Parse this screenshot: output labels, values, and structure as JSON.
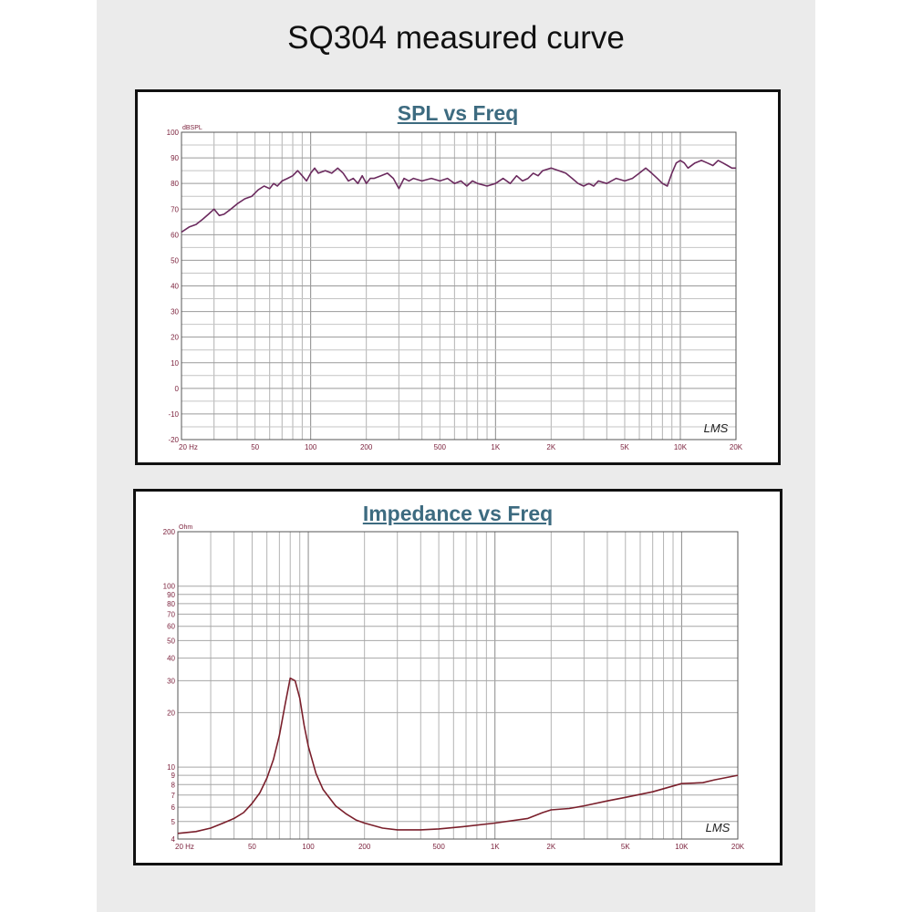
{
  "page_title": "SQ304 measured curve",
  "chart_data": [
    {
      "type": "line",
      "title": "SPL vs Freq",
      "ylabel": "dBSPL",
      "xlabel": "",
      "x_scale": "log",
      "xlim": [
        20,
        20000
      ],
      "ylim": [
        -20,
        100
      ],
      "grid": true,
      "x_tick_labels": [
        "20 Hz",
        "50",
        "100",
        "200",
        "500",
        "1K",
        "2K",
        "5K",
        "10K",
        "20K"
      ],
      "y_tick_labels": [
        "100",
        "90",
        "80",
        "70",
        "60",
        "50",
        "40",
        "30",
        "20",
        "10",
        "0",
        "-10",
        "-20"
      ],
      "watermark": "LMS",
      "series": [
        {
          "color": "#6b2a5e",
          "points": [
            [
              20,
              61
            ],
            [
              22,
              63
            ],
            [
              24,
              64
            ],
            [
              26,
              66
            ],
            [
              28,
              68
            ],
            [
              30,
              70
            ],
            [
              32,
              67.5
            ],
            [
              34,
              68
            ],
            [
              37,
              70
            ],
            [
              40,
              72
            ],
            [
              44,
              74
            ],
            [
              48,
              75
            ],
            [
              52,
              77.5
            ],
            [
              56,
              79
            ],
            [
              60,
              78
            ],
            [
              63,
              80
            ],
            [
              66,
              79
            ],
            [
              70,
              81
            ],
            [
              75,
              82
            ],
            [
              80,
              83
            ],
            [
              85,
              85
            ],
            [
              90,
              83
            ],
            [
              95,
              81
            ],
            [
              100,
              84
            ],
            [
              105,
              86
            ],
            [
              110,
              84
            ],
            [
              120,
              85
            ],
            [
              130,
              84
            ],
            [
              140,
              86
            ],
            [
              150,
              84
            ],
            [
              160,
              81
            ],
            [
              170,
              82
            ],
            [
              180,
              80
            ],
            [
              190,
              83
            ],
            [
              200,
              80
            ],
            [
              210,
              82
            ],
            [
              220,
              82
            ],
            [
              240,
              83
            ],
            [
              260,
              84
            ],
            [
              280,
              82
            ],
            [
              300,
              78
            ],
            [
              320,
              82
            ],
            [
              340,
              81
            ],
            [
              360,
              82
            ],
            [
              400,
              81
            ],
            [
              450,
              82
            ],
            [
              500,
              81
            ],
            [
              550,
              82
            ],
            [
              600,
              80
            ],
            [
              650,
              81
            ],
            [
              700,
              79
            ],
            [
              750,
              81
            ],
            [
              800,
              80
            ],
            [
              900,
              79
            ],
            [
              1000,
              80
            ],
            [
              1100,
              82
            ],
            [
              1200,
              80
            ],
            [
              1300,
              83
            ],
            [
              1400,
              81
            ],
            [
              1500,
              82
            ],
            [
              1600,
              84
            ],
            [
              1700,
              83
            ],
            [
              1800,
              85
            ],
            [
              2000,
              86
            ],
            [
              2200,
              85
            ],
            [
              2400,
              84
            ],
            [
              2600,
              82
            ],
            [
              2800,
              80
            ],
            [
              3000,
              79
            ],
            [
              3200,
              80
            ],
            [
              3400,
              79
            ],
            [
              3600,
              81
            ],
            [
              4000,
              80
            ],
            [
              4500,
              82
            ],
            [
              5000,
              81
            ],
            [
              5500,
              82
            ],
            [
              6000,
              84
            ],
            [
              6500,
              86
            ],
            [
              7000,
              84
            ],
            [
              7500,
              82
            ],
            [
              8000,
              80
            ],
            [
              8500,
              79
            ],
            [
              9000,
              84
            ],
            [
              9500,
              88
            ],
            [
              10000,
              89
            ],
            [
              10500,
              88
            ],
            [
              11000,
              86
            ],
            [
              12000,
              88
            ],
            [
              13000,
              89
            ],
            [
              14000,
              88
            ],
            [
              15000,
              87
            ],
            [
              16000,
              89
            ],
            [
              17000,
              88
            ],
            [
              18000,
              87
            ],
            [
              19000,
              86
            ],
            [
              20000,
              86
            ]
          ]
        }
      ]
    },
    {
      "type": "line",
      "title": "Impedance vs Freq",
      "ylabel": "Ohm",
      "xlabel": "",
      "x_scale": "log",
      "y_scale": "log",
      "xlim": [
        20,
        20000
      ],
      "ylim": [
        4,
        200
      ],
      "grid": true,
      "x_tick_labels": [
        "20 Hz",
        "50",
        "100",
        "200",
        "500",
        "1K",
        "2K",
        "5K",
        "10K",
        "20K"
      ],
      "y_tick_labels": [
        "200",
        "100",
        "90",
        "80",
        "70",
        "60",
        "50",
        "40",
        "30",
        "20",
        "10",
        "9",
        "8",
        "7",
        "6",
        "5",
        "4"
      ],
      "watermark": "LMS",
      "series": [
        {
          "color": "#7a1f2b",
          "points": [
            [
              20,
              4.3
            ],
            [
              25,
              4.4
            ],
            [
              30,
              4.6
            ],
            [
              35,
              4.9
            ],
            [
              40,
              5.2
            ],
            [
              45,
              5.6
            ],
            [
              50,
              6.3
            ],
            [
              55,
              7.2
            ],
            [
              60,
              8.7
            ],
            [
              65,
              11
            ],
            [
              70,
              15
            ],
            [
              75,
              22
            ],
            [
              80,
              31
            ],
            [
              85,
              30
            ],
            [
              90,
              24
            ],
            [
              95,
              17
            ],
            [
              100,
              13
            ],
            [
              110,
              9.2
            ],
            [
              120,
              7.5
            ],
            [
              140,
              6.1
            ],
            [
              160,
              5.5
            ],
            [
              180,
              5.1
            ],
            [
              200,
              4.9
            ],
            [
              250,
              4.6
            ],
            [
              300,
              4.5
            ],
            [
              400,
              4.5
            ],
            [
              500,
              4.55
            ],
            [
              700,
              4.7
            ],
            [
              1000,
              4.9
            ],
            [
              1500,
              5.2
            ],
            [
              1800,
              5.6
            ],
            [
              2000,
              5.8
            ],
            [
              2500,
              5.9
            ],
            [
              3000,
              6.1
            ],
            [
              4000,
              6.5
            ],
            [
              5000,
              6.8
            ],
            [
              7000,
              7.3
            ],
            [
              10000,
              8.1
            ],
            [
              13000,
              8.2
            ],
            [
              15000,
              8.5
            ],
            [
              20000,
              9
            ]
          ]
        }
      ]
    }
  ]
}
